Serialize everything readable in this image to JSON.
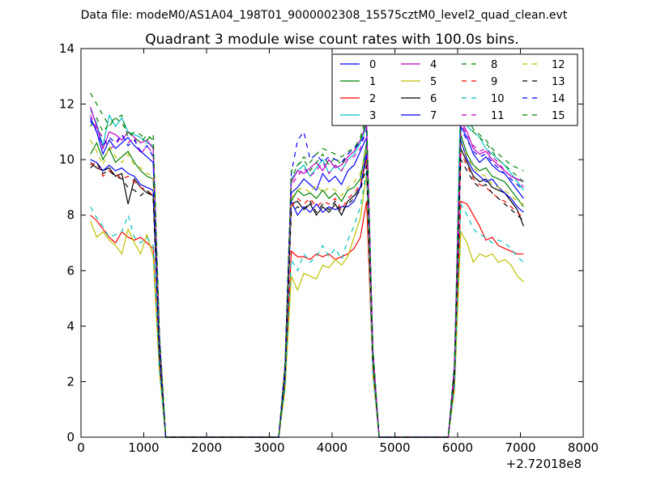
{
  "suptitle": "Data file: modeM0/AS1A04_198T01_9000002308_15575cztM0_level2_quad_clean.evt",
  "chart_data": {
    "type": "line",
    "title": "Quadrant 3 module wise count rates with 100.0s bins.",
    "xlabel": "",
    "ylabel": "",
    "x_offset_label": "+2.72018e8",
    "xlim": [
      0,
      8000
    ],
    "ylim": [
      0,
      14
    ],
    "x_ticks": [
      0,
      1000,
      2000,
      3000,
      4000,
      5000,
      6000,
      7000,
      8000
    ],
    "y_ticks": [
      0,
      2,
      4,
      6,
      8,
      10,
      12,
      14
    ],
    "grid": false,
    "legend_position": "top-right",
    "legend_columns": 4,
    "x": [
      150,
      250,
      350,
      450,
      550,
      650,
      750,
      850,
      950,
      1050,
      1150,
      1250,
      1350,
      1450,
      1550,
      1650,
      1750,
      1850,
      1950,
      2050,
      2150,
      2250,
      2350,
      2450,
      2550,
      2650,
      2750,
      2850,
      2950,
      3050,
      3150,
      3250,
      3350,
      3450,
      3550,
      3650,
      3750,
      3850,
      3950,
      4050,
      4150,
      4250,
      4350,
      4450,
      4550,
      4650,
      4750,
      4850,
      4950,
      5050,
      5150,
      5250,
      5350,
      5450,
      5550,
      5650,
      5750,
      5850,
      5950,
      6050,
      6150,
      6250,
      6350,
      6450,
      6550,
      6650,
      6750,
      6850,
      6950,
      7050
    ],
    "series": [
      {
        "name": "0",
        "color": "#0000ff",
        "dash": "solid",
        "values": [
          11.5,
          11.0,
          10.2,
          10.7,
          10.4,
          10.6,
          10.8,
          10.5,
          10.3,
          10.1,
          9.9,
          3.5,
          0,
          0,
          0,
          0,
          0,
          0,
          0,
          0,
          0,
          0,
          0,
          0,
          0,
          0,
          0,
          0,
          0,
          0,
          0,
          2.5,
          8.8,
          9.0,
          9.3,
          9.1,
          8.9,
          9.5,
          9.2,
          9.4,
          9.1,
          9.6,
          9.8,
          10.3,
          10.8,
          3.0,
          0,
          0,
          0,
          0,
          0,
          0,
          0,
          0,
          0,
          0,
          0,
          0,
          2.5,
          11.2,
          10.8,
          10.2,
          9.9,
          10.1,
          9.8,
          9.6,
          9.5,
          9.2,
          8.9,
          8.6
        ]
      },
      {
        "name": "1",
        "color": "#008000",
        "dash": "solid",
        "values": [
          10.2,
          10.6,
          10.0,
          10.4,
          9.9,
          10.1,
          10.3,
          9.9,
          9.6,
          9.4,
          9.3,
          3.2,
          0,
          0,
          0,
          0,
          0,
          0,
          0,
          0,
          0,
          0,
          0,
          0,
          0,
          0,
          0,
          0,
          0,
          0,
          0,
          2.4,
          8.5,
          8.9,
          8.7,
          8.8,
          8.6,
          8.9,
          8.6,
          8.8,
          8.5,
          8.9,
          9.0,
          9.3,
          10.6,
          2.9,
          0,
          0,
          0,
          0,
          0,
          0,
          0,
          0,
          0,
          0,
          0,
          0,
          2.4,
          10.9,
          10.2,
          9.8,
          9.6,
          9.7,
          9.4,
          9.3,
          9.2,
          8.9,
          8.6,
          8.3
        ]
      },
      {
        "name": "2",
        "color": "#ff0000",
        "dash": "solid",
        "values": [
          8.0,
          7.8,
          7.5,
          7.2,
          7.0,
          7.4,
          7.2,
          7.1,
          7.2,
          7.0,
          6.8,
          2.5,
          0,
          0,
          0,
          0,
          0,
          0,
          0,
          0,
          0,
          0,
          0,
          0,
          0,
          0,
          0,
          0,
          0,
          0,
          0,
          1.8,
          6.7,
          6.5,
          6.5,
          6.4,
          6.6,
          6.5,
          6.6,
          6.4,
          6.5,
          6.6,
          6.8,
          7.2,
          8.5,
          2.3,
          0,
          0,
          0,
          0,
          0,
          0,
          0,
          0,
          0,
          0,
          0,
          0,
          1.8,
          8.5,
          8.4,
          8.0,
          7.6,
          7.1,
          7.2,
          6.9,
          6.8,
          6.7,
          6.6,
          6.6
        ]
      },
      {
        "name": "3",
        "color": "#00bfbf",
        "dash": "solid",
        "values": [
          11.8,
          11.3,
          10.5,
          11.6,
          11.2,
          11.5,
          11.0,
          10.9,
          10.8,
          10.6,
          10.5,
          3.6,
          0,
          0,
          0,
          0,
          0,
          0,
          0,
          0,
          0,
          0,
          0,
          0,
          0,
          0,
          0,
          0,
          0,
          0,
          0,
          2.6,
          9.3,
          9.6,
          9.8,
          9.4,
          9.7,
          10.0,
          9.5,
          9.8,
          9.6,
          10.0,
          10.2,
          10.6,
          11.2,
          3.1,
          0,
          0,
          0,
          0,
          0,
          0,
          0,
          0,
          0,
          0,
          0,
          0,
          2.6,
          12.6,
          11.2,
          11.0,
          10.8,
          10.4,
          10.2,
          10.0,
          9.8,
          9.5,
          9.2,
          8.9
        ]
      },
      {
        "name": "4",
        "color": "#bf00bf",
        "dash": "solid",
        "values": [
          11.9,
          11.2,
          10.4,
          11.0,
          10.9,
          10.7,
          11.0,
          10.8,
          10.6,
          10.7,
          10.4,
          3.6,
          0,
          0,
          0,
          0,
          0,
          0,
          0,
          0,
          0,
          0,
          0,
          0,
          0,
          0,
          0,
          0,
          0,
          0,
          0,
          2.6,
          9.2,
          9.6,
          9.5,
          9.7,
          9.9,
          9.6,
          10.0,
          9.7,
          9.8,
          10.1,
          10.3,
          10.7,
          11.3,
          3.1,
          0,
          0,
          0,
          0,
          0,
          0,
          0,
          0,
          0,
          0,
          0,
          0,
          2.6,
          11.4,
          11.0,
          10.4,
          10.2,
          10.3,
          10.0,
          9.8,
          9.6,
          9.4,
          9.3,
          9.2
        ]
      },
      {
        "name": "5",
        "color": "#bfbf00",
        "dash": "solid",
        "values": [
          7.8,
          7.2,
          7.4,
          7.1,
          6.9,
          6.6,
          7.5,
          7.0,
          6.6,
          7.3,
          6.5,
          2.3,
          0,
          0,
          0,
          0,
          0,
          0,
          0,
          0,
          0,
          0,
          0,
          0,
          0,
          0,
          0,
          0,
          0,
          0,
          0,
          1.7,
          5.8,
          5.3,
          5.9,
          5.8,
          5.7,
          6.2,
          6.1,
          6.4,
          6.2,
          6.5,
          7.2,
          7.9,
          9.5,
          2.2,
          0,
          0,
          0,
          0,
          0,
          0,
          0,
          0,
          0,
          0,
          0,
          0,
          1.7,
          7.4,
          7.0,
          6.3,
          6.6,
          6.5,
          6.6,
          6.3,
          6.4,
          6.2,
          5.8,
          5.6
        ]
      },
      {
        "name": "6",
        "color": "#000000",
        "dash": "solid",
        "values": [
          9.9,
          9.7,
          9.6,
          9.7,
          9.4,
          9.5,
          8.4,
          9.3,
          9.0,
          8.8,
          8.7,
          3.0,
          0,
          0,
          0,
          0,
          0,
          0,
          0,
          0,
          0,
          0,
          0,
          0,
          0,
          0,
          0,
          0,
          0,
          0,
          0,
          2.2,
          8.4,
          8.5,
          8.2,
          8.4,
          8.0,
          8.3,
          8.1,
          8.4,
          8.0,
          8.5,
          8.7,
          9.0,
          10.1,
          2.8,
          0,
          0,
          0,
          0,
          0,
          0,
          0,
          0,
          0,
          0,
          0,
          0,
          2.2,
          10.4,
          9.9,
          9.4,
          9.2,
          9.3,
          9.0,
          8.9,
          8.8,
          8.5,
          8.2,
          7.6
        ]
      },
      {
        "name": "7",
        "color": "#0000ff",
        "dash": "solid",
        "values": [
          10.0,
          9.9,
          9.6,
          9.8,
          9.6,
          9.7,
          9.5,
          9.4,
          9.1,
          9.0,
          8.9,
          3.0,
          0,
          0,
          0,
          0,
          0,
          0,
          0,
          0,
          0,
          0,
          0,
          0,
          0,
          0,
          0,
          0,
          0,
          0,
          0,
          2.3,
          8.5,
          8.0,
          8.3,
          8.1,
          8.4,
          8.1,
          8.3,
          8.2,
          8.3,
          8.3,
          8.5,
          9.0,
          10.3,
          2.8,
          0,
          0,
          0,
          0,
          0,
          0,
          0,
          0,
          0,
          0,
          0,
          0,
          2.3,
          10.7,
          10.0,
          9.6,
          9.4,
          9.2,
          9.3,
          9.0,
          8.8,
          8.6,
          8.3,
          8.1
        ]
      },
      {
        "name": "8",
        "color": "#008000",
        "dash": "dashed",
        "values": [
          11.2,
          11.5,
          11.0,
          11.3,
          11.5,
          11.6,
          10.8,
          11.0,
          10.9,
          10.7,
          10.9,
          3.7,
          0,
          0,
          0,
          0,
          0,
          0,
          0,
          0,
          0,
          0,
          0,
          0,
          0,
          0,
          0,
          0,
          0,
          0,
          0,
          2.6,
          9.3,
          9.8,
          10.0,
          9.6,
          9.9,
          10.2,
          9.8,
          10.1,
          9.8,
          10.2,
          10.4,
          10.7,
          11.4,
          3.2,
          0,
          0,
          0,
          0,
          0,
          0,
          0,
          0,
          0,
          0,
          0,
          0,
          2.6,
          11.8,
          11.4,
          11.0,
          10.8,
          10.6,
          10.3,
          10.0,
          9.8,
          9.6,
          9.4,
          9.2
        ]
      },
      {
        "name": "9",
        "color": "#ff0000",
        "dash": "dashed",
        "values": [
          9.8,
          9.9,
          9.4,
          9.6,
          9.5,
          9.3,
          9.4,
          9.2,
          9.0,
          8.9,
          8.7,
          3.0,
          0,
          0,
          0,
          0,
          0,
          0,
          0,
          0,
          0,
          0,
          0,
          0,
          0,
          0,
          0,
          0,
          0,
          0,
          0,
          2.3,
          8.3,
          8.6,
          8.4,
          8.6,
          8.3,
          8.5,
          8.4,
          8.6,
          8.2,
          8.6,
          8.8,
          9.1,
          10.0,
          2.8,
          0,
          0,
          0,
          0,
          0,
          0,
          0,
          0,
          0,
          0,
          0,
          0,
          2.3,
          10.2,
          9.8,
          9.3,
          9.1,
          9.0,
          8.8,
          8.6,
          8.5,
          8.3,
          8.1,
          7.9
        ]
      },
      {
        "name": "10",
        "color": "#00bfbf",
        "dash": "dashed",
        "values": [
          8.3,
          7.9,
          7.6,
          7.2,
          7.3,
          7.4,
          8.0,
          7.2,
          7.0,
          7.2,
          6.9,
          2.4,
          0,
          0,
          0,
          0,
          0,
          0,
          0,
          0,
          0,
          0,
          0,
          0,
          0,
          0,
          0,
          0,
          0,
          0,
          0,
          1.8,
          6.4,
          6.0,
          6.6,
          6.3,
          6.5,
          6.9,
          6.5,
          6.8,
          6.4,
          7.1,
          7.6,
          8.3,
          9.6,
          2.3,
          0,
          0,
          0,
          0,
          0,
          0,
          0,
          0,
          0,
          0,
          0,
          0,
          1.8,
          8.4,
          8.0,
          7.5,
          7.3,
          7.2,
          7.0,
          7.1,
          7.0,
          6.8,
          6.5,
          6.3
        ]
      },
      {
        "name": "11",
        "color": "#bf00bf",
        "dash": "dashed",
        "values": [
          11.6,
          11.1,
          10.8,
          10.4,
          10.5,
          10.9,
          10.6,
          10.8,
          10.2,
          10.5,
          10.2,
          3.5,
          0,
          0,
          0,
          0,
          0,
          0,
          0,
          0,
          0,
          0,
          0,
          0,
          0,
          0,
          0,
          0,
          0,
          0,
          0,
          2.5,
          9.1,
          9.4,
          9.7,
          9.4,
          9.6,
          9.9,
          9.5,
          9.8,
          9.6,
          10.0,
          10.1,
          10.4,
          11.1,
          3.0,
          0,
          0,
          0,
          0,
          0,
          0,
          0,
          0,
          0,
          0,
          0,
          0,
          2.5,
          11.3,
          10.9,
          10.5,
          10.3,
          10.4,
          10.1,
          9.9,
          9.6,
          9.4,
          9.3,
          9.0
        ]
      },
      {
        "name": "12",
        "color": "#bfbf00",
        "dash": "dashed",
        "values": [
          10.7,
          10.3,
          9.8,
          10.5,
          10.1,
          9.9,
          10.2,
          9.8,
          9.7,
          9.5,
          9.4,
          3.2,
          0,
          0,
          0,
          0,
          0,
          0,
          0,
          0,
          0,
          0,
          0,
          0,
          0,
          0,
          0,
          0,
          0,
          0,
          0,
          2.4,
          8.6,
          8.9,
          9.0,
          8.8,
          9.1,
          8.8,
          9.0,
          8.9,
          8.7,
          9.0,
          9.2,
          9.5,
          10.4,
          2.9,
          0,
          0,
          0,
          0,
          0,
          0,
          0,
          0,
          0,
          0,
          0,
          0,
          2.4,
          10.6,
          10.1,
          9.7,
          9.5,
          9.4,
          9.1,
          9.0,
          8.9,
          8.7,
          8.5,
          8.4
        ]
      },
      {
        "name": "13",
        "color": "#000000",
        "dash": "dashed",
        "values": [
          9.7,
          9.9,
          9.5,
          9.6,
          9.4,
          9.3,
          9.0,
          8.9,
          8.7,
          8.9,
          8.6,
          2.9,
          0,
          0,
          0,
          0,
          0,
          0,
          0,
          0,
          0,
          0,
          0,
          0,
          0,
          0,
          0,
          0,
          0,
          0,
          0,
          2.2,
          8.1,
          8.3,
          8.2,
          8.5,
          8.1,
          8.4,
          8.2,
          8.5,
          8.1,
          8.4,
          8.6,
          8.9,
          9.8,
          2.7,
          0,
          0,
          0,
          0,
          0,
          0,
          0,
          0,
          0,
          0,
          0,
          0,
          2.2,
          10.0,
          9.6,
          9.2,
          9.0,
          9.1,
          8.8,
          8.6,
          8.4,
          8.2,
          8.0,
          7.8
        ]
      },
      {
        "name": "14",
        "color": "#0000ff",
        "dash": "dashed",
        "values": [
          11.4,
          11.0,
          10.5,
          10.8,
          10.6,
          10.9,
          10.5,
          10.7,
          10.3,
          10.5,
          10.1,
          3.5,
          0,
          0,
          0,
          0,
          0,
          0,
          0,
          0,
          0,
          0,
          0,
          0,
          0,
          0,
          0,
          0,
          0,
          0,
          0,
          2.6,
          9.5,
          10.7,
          11.0,
          10.0,
          10.2,
          9.9,
          10.1,
          10.0,
          9.9,
          10.2,
          10.4,
          10.6,
          11.0,
          3.1,
          0,
          0,
          0,
          0,
          0,
          0,
          0,
          0,
          0,
          0,
          0,
          0,
          2.6,
          11.1,
          10.7,
          10.3,
          10.1,
          10.2,
          9.9,
          9.7,
          9.5,
          9.3,
          9.1,
          8.9
        ]
      },
      {
        "name": "15",
        "color": "#008000",
        "dash": "dashed",
        "values": [
          12.4,
          12.0,
          11.6,
          11.2,
          11.5,
          11.3,
          11.0,
          10.8,
          10.6,
          10.9,
          10.7,
          3.7,
          0,
          0,
          0,
          0,
          0,
          0,
          0,
          0,
          0,
          0,
          0,
          0,
          0,
          0,
          0,
          0,
          0,
          0,
          0,
          2.7,
          9.6,
          9.8,
          10.1,
          9.9,
          10.2,
          10.4,
          10.3,
          10.2,
          10.1,
          10.3,
          10.4,
          10.8,
          11.6,
          3.2,
          0,
          0,
          0,
          0,
          0,
          0,
          0,
          0,
          0,
          0,
          0,
          0,
          2.7,
          11.9,
          11.5,
          11.1,
          10.9,
          10.7,
          10.4,
          10.2,
          10.0,
          9.8,
          9.7,
          9.6
        ]
      }
    ]
  }
}
